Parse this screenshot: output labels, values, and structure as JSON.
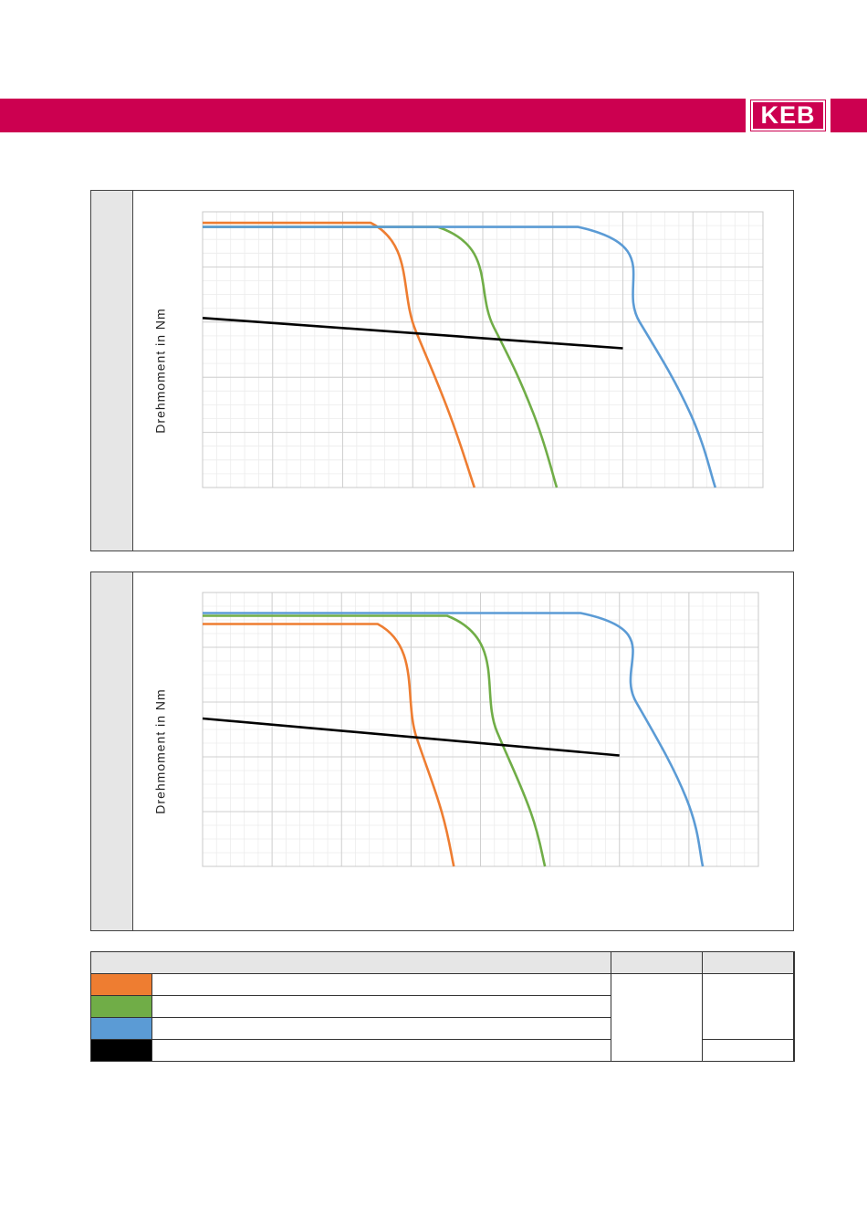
{
  "header": {
    "logo_text": "KEB",
    "brand_color": "#cc0050"
  },
  "charts": [
    {
      "ylabel": "Drehmoment in Nm"
    },
    {
      "ylabel": "Drehmoment in Nm"
    }
  ],
  "colors": {
    "orange": "#ee7d31",
    "green": "#70ad47",
    "blue": "#5b9bd5",
    "black": "#000000"
  },
  "chart_data": [
    {
      "type": "line",
      "title": "",
      "xlabel": "",
      "ylabel": "Drehmoment in Nm",
      "grid": true,
      "series": [
        {
          "color": "#ee7d31",
          "x": [
            0,
            0.3,
            0.38,
            0.44,
            0.485
          ],
          "y": [
            0.96,
            0.96,
            0.57,
            0.27,
            0.0
          ]
        },
        {
          "color": "#70ad47",
          "x": [
            0,
            0.42,
            0.52,
            0.59,
            0.632
          ],
          "y": [
            0.945,
            0.945,
            0.58,
            0.27,
            0.0
          ]
        },
        {
          "color": "#5b9bd5",
          "x": [
            0,
            0.67,
            0.78,
            0.87,
            0.915
          ],
          "y": [
            0.945,
            0.945,
            0.6,
            0.27,
            0.0
          ]
        },
        {
          "color": "#000000",
          "x": [
            0,
            0.75
          ],
          "y": [
            0.615,
            0.505
          ]
        }
      ]
    },
    {
      "type": "line",
      "title": "",
      "xlabel": "",
      "ylabel": "Drehmoment in Nm",
      "grid": true,
      "series": [
        {
          "color": "#ee7d31",
          "x": [
            0,
            0.315,
            0.385,
            0.43,
            0.452
          ],
          "y": [
            0.885,
            0.885,
            0.47,
            0.2,
            0.0
          ]
        },
        {
          "color": "#70ad47",
          "x": [
            0,
            0.44,
            0.53,
            0.59,
            0.616
          ],
          "y": [
            0.915,
            0.915,
            0.49,
            0.2,
            0.0
          ]
        },
        {
          "color": "#5b9bd5",
          "x": [
            0,
            0.68,
            0.78,
            0.87,
            0.9
          ],
          "y": [
            0.925,
            0.925,
            0.6,
            0.25,
            0.0
          ]
        },
        {
          "color": "#000000",
          "x": [
            0,
            0.75
          ],
          "y": [
            0.54,
            0.405
          ]
        }
      ]
    }
  ],
  "legend": {
    "rows": [
      {
        "swatch": "#ee7d31"
      },
      {
        "swatch": "#70ad47"
      },
      {
        "swatch": "#5b9bd5"
      },
      {
        "swatch": "#000000"
      }
    ]
  }
}
